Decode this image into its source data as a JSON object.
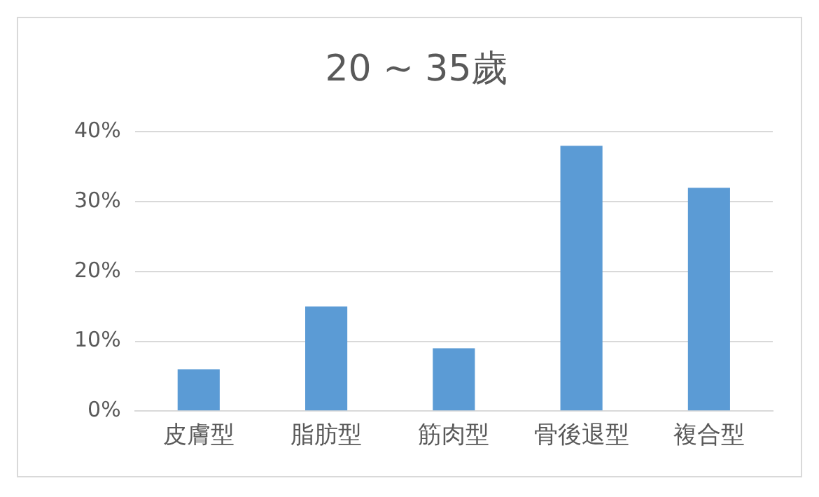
{
  "chart_data": {
    "type": "bar",
    "title": "20 ~ 35歲",
    "categories": [
      "皮膚型",
      "脂肪型",
      "筋肉型",
      "骨後退型",
      "複合型"
    ],
    "values": [
      6,
      15,
      9,
      38,
      32
    ],
    "color": "#5b9bd5",
    "ylim": [
      0,
      40
    ],
    "yticks": [
      {
        "value": 0,
        "label": "0%"
      },
      {
        "value": 10,
        "label": "10%"
      },
      {
        "value": 20,
        "label": "20%"
      },
      {
        "value": 30,
        "label": "30%"
      },
      {
        "value": 40,
        "label": "40%"
      }
    ],
    "grid": "y",
    "legend": false
  }
}
